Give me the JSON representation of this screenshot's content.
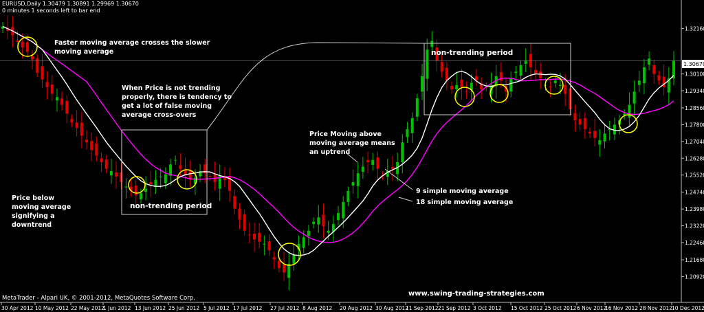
{
  "header": {
    "symbol_line": "EURUSD,Daily  1.30479 1.30891 1.29969 1.30670",
    "timer_line": "0 minutes 1 seconds left to bar end"
  },
  "footer": {
    "copyright": "MetaTrader - Alpari UK, © 2001-2012, MetaQuotes Software Corp.",
    "website": "www.swing-trading-strategies.com"
  },
  "annotations": {
    "crossover": "Faster moving average crosses the slower\nmoving average",
    "not_trending": "When Price is not trending\nproperly, there is tendency to\nget a lot of false moving\naverage cross-overs",
    "below": "Price below\nmoving average\nsignifying a\ndowntrend",
    "above": "Price Moving above\nmoving average means\nan uptrend",
    "ma9": "9 simple moving average",
    "ma18": "18 simple moving average",
    "non_trending_1": "non-trending period",
    "non_trending_2": "non-trending period"
  },
  "colors": {
    "background": "#000000",
    "bull": "#00c000",
    "bear": "#e00000",
    "ma9": "#ffffff",
    "ma18": "#ff00ff",
    "highlight_circle": "#ffff00",
    "axis": "#c0c0c0"
  },
  "chart_data": {
    "type": "candlestick",
    "title": "",
    "symbol": "EURUSD",
    "timeframe": "Daily",
    "ylim": [
      1.1975,
      1.3345
    ],
    "y_ticks": [
      "1.32160",
      "1.29340",
      "1.27040",
      "1.26280",
      "1.25520",
      "1.24740",
      "1.23980",
      "1.23220",
      "1.22460",
      "1.21680",
      "1.20920"
    ],
    "y_ticks_top": [
      "1.32160"
    ],
    "current_price_label": "1.30670",
    "x_tick_labels": [
      "30 Apr 2012",
      "10 May 2012",
      "22 May 2012",
      "1 Jun 2012",
      "13 Jun 2012",
      "25 Jun 2012",
      "5 Jul 2012",
      "17 Jul 2012",
      "27 Jul 2012",
      "8 Aug 2012",
      "20 Aug 2012",
      "30 Aug 2012",
      "11 Sep 2012",
      "21 Sep 2012",
      "3 Oct 2012",
      "15 Oct 2012",
      "25 Oct 2012",
      "6 Nov 2012",
      "16 Nov 2012",
      "28 Nov 2012",
      "10 Dec 2012"
    ],
    "y_tick_values": [
      1.3216,
      1.301,
      1.2934,
      1.2856,
      1.278,
      1.2704,
      1.2628,
      1.2552,
      1.2474,
      1.2398,
      1.2322,
      1.2246,
      1.2168,
      1.2092
    ],
    "y_tick_texts": [
      "1.32160",
      "1.30100",
      "1.29340",
      "1.28560",
      "1.27800",
      "1.27040",
      "1.26280",
      "1.25520",
      "1.24740",
      "1.23980",
      "1.23220",
      "1.22460",
      "1.21680",
      "1.20920"
    ],
    "closes": [
      1.3225,
      1.3205,
      1.3185,
      1.3155,
      1.313,
      1.311,
      1.3075,
      1.3015,
      1.2985,
      1.295,
      1.292,
      1.2905,
      1.287,
      1.283,
      1.279,
      1.2765,
      1.273,
      1.27,
      1.2665,
      1.264,
      1.261,
      1.258,
      1.257,
      1.2545,
      1.252,
      1.25,
      1.248,
      1.246,
      1.247,
      1.249,
      1.251,
      1.253,
      1.2545,
      1.2555,
      1.26,
      1.262,
      1.258,
      1.255,
      1.253,
      1.254,
      1.257,
      1.256,
      1.2545,
      1.252,
      1.255,
      1.253,
      1.248,
      1.24,
      1.235,
      1.23,
      1.228,
      1.226,
      1.225,
      1.224,
      1.221,
      1.217,
      1.213,
      1.211,
      1.215,
      1.219,
      1.224,
      1.227,
      1.23,
      1.234,
      1.236,
      1.232,
      1.23,
      1.233,
      1.238,
      1.243,
      1.248,
      1.252,
      1.256,
      1.259,
      1.261,
      1.262,
      1.258,
      1.255,
      1.257,
      1.258,
      1.261,
      1.27,
      1.276,
      1.281,
      1.29,
      1.3,
      1.312,
      1.316,
      1.307,
      1.302,
      1.298,
      1.294,
      1.296,
      1.295,
      1.293,
      1.297,
      1.298,
      1.294,
      1.295,
      1.296,
      1.3,
      1.298,
      1.293,
      1.299,
      1.302,
      1.305,
      1.307,
      1.304,
      1.301,
      1.299,
      1.296,
      1.295,
      1.298,
      1.296,
      1.292,
      1.285,
      1.28,
      1.278,
      1.276,
      1.274,
      1.272,
      1.271,
      1.274,
      1.276,
      1.278,
      1.28,
      1.283,
      1.287,
      1.293,
      1.298,
      1.304,
      1.308,
      1.301,
      1.298,
      1.295,
      1.299,
      1.307
    ],
    "series": [
      {
        "name": "9 simple moving average",
        "period": 9
      },
      {
        "name": "18 simple moving average",
        "period": 18
      }
    ],
    "legend": "inline-text",
    "grid": false
  }
}
